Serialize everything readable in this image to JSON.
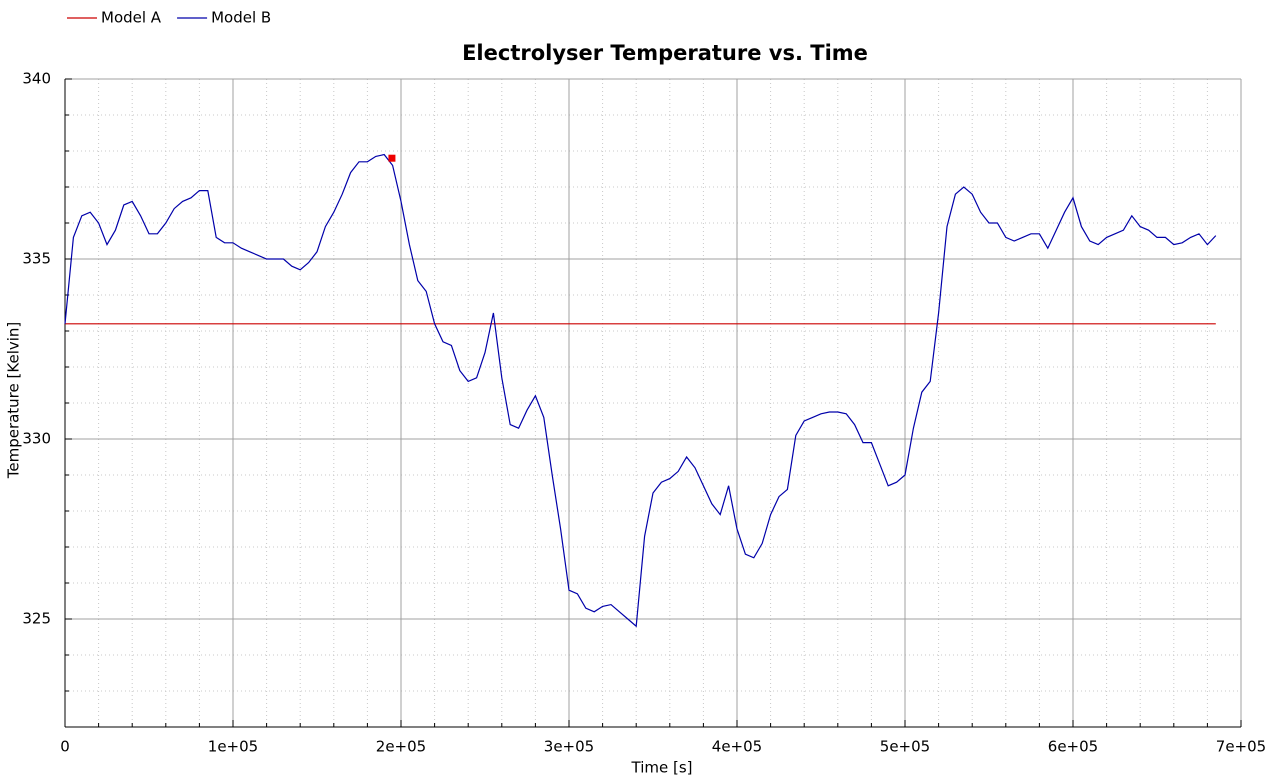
{
  "chart_data": {
    "type": "line",
    "title": "Electrolyser Temperature vs. Time",
    "xlabel": "Time [s]",
    "ylabel": "Temperature [Kelvin]",
    "xlim": [
      0,
      700000
    ],
    "ylim": [
      322,
      340
    ],
    "xticks": [
      0,
      {
        "value": 100000,
        "label": "1e+05"
      },
      {
        "value": 200000,
        "label": "2e+05"
      },
      {
        "value": 300000,
        "label": "3e+05"
      },
      {
        "value": 400000,
        "label": "4e+05"
      },
      {
        "value": 500000,
        "label": "5e+05"
      },
      {
        "value": 600000,
        "label": "6e+05"
      },
      {
        "value": 700000,
        "label": "7e+05"
      }
    ],
    "yticks": [
      325,
      330,
      335,
      340
    ],
    "xminorticks": [
      20000,
      40000,
      60000,
      80000,
      120000,
      140000,
      160000,
      180000,
      220000,
      240000,
      260000,
      280000,
      320000,
      340000,
      360000,
      380000,
      420000,
      440000,
      460000,
      480000,
      520000,
      540000,
      560000,
      580000,
      620000,
      640000,
      660000,
      680000
    ],
    "yminorticks": [
      323,
      324,
      326,
      327,
      328,
      329,
      331,
      332,
      333,
      334,
      336,
      337,
      338,
      339
    ],
    "grid": true,
    "legend": "top-left",
    "series": [
      {
        "name": "Model A",
        "color": "#cc0000",
        "x": [
          0,
          685000
        ],
        "values": [
          333.2,
          333.2
        ]
      },
      {
        "name": "Model B",
        "color": "#0000aa",
        "x": [
          0,
          5000,
          10000,
          15000,
          20000,
          25000,
          30000,
          35000,
          40000,
          45000,
          50000,
          55000,
          60000,
          65000,
          70000,
          75000,
          80000,
          85000,
          90000,
          95000,
          100000,
          105000,
          110000,
          115000,
          120000,
          125000,
          130000,
          135000,
          140000,
          145000,
          150000,
          155000,
          160000,
          165000,
          170000,
          175000,
          180000,
          185000,
          190000,
          195000,
          200000,
          205000,
          210000,
          215000,
          220000,
          225000,
          230000,
          235000,
          240000,
          245000,
          250000,
          255000,
          260000,
          265000,
          270000,
          275000,
          280000,
          285000,
          290000,
          295000,
          300000,
          305000,
          310000,
          315000,
          320000,
          325000,
          330000,
          335000,
          340000,
          345000,
          350000,
          355000,
          360000,
          365000,
          370000,
          375000,
          380000,
          385000,
          390000,
          395000,
          400000,
          405000,
          410000,
          415000,
          420000,
          425000,
          430000,
          435000,
          440000,
          445000,
          450000,
          455000,
          460000,
          465000,
          470000,
          475000,
          480000,
          485000,
          490000,
          495000,
          500000,
          505000,
          510000,
          515000,
          520000,
          525000,
          530000,
          535000,
          540000,
          545000,
          550000,
          555000,
          560000,
          565000,
          570000,
          575000,
          580000,
          585000,
          590000,
          595000,
          600000,
          605000,
          610000,
          615000,
          620000,
          625000,
          630000,
          635000,
          640000,
          645000,
          650000,
          655000,
          660000,
          665000,
          670000,
          675000,
          680000,
          685000
        ],
        "values": [
          333.2,
          335.6,
          336.2,
          336.3,
          336.0,
          335.4,
          335.8,
          336.5,
          336.6,
          336.2,
          335.7,
          335.7,
          336.0,
          336.4,
          336.6,
          336.7,
          336.9,
          336.9,
          335.6,
          335.45,
          335.45,
          335.3,
          335.2,
          335.1,
          335.0,
          335.0,
          335.0,
          334.8,
          334.7,
          334.9,
          335.2,
          335.9,
          336.3,
          336.8,
          337.4,
          337.7,
          337.7,
          337.85,
          337.9,
          337.6,
          336.6,
          335.4,
          334.4,
          334.1,
          333.2,
          332.7,
          332.6,
          331.9,
          331.6,
          331.7,
          332.4,
          333.5,
          331.7,
          330.4,
          330.3,
          330.8,
          331.2,
          330.6,
          329.0,
          327.5,
          325.8,
          325.7,
          325.3,
          325.2,
          325.35,
          325.4,
          325.2,
          325.0,
          324.8,
          327.3,
          328.5,
          328.8,
          328.9,
          329.1,
          329.5,
          329.2,
          328.7,
          328.2,
          327.9,
          328.7,
          327.5,
          326.8,
          326.7,
          327.1,
          327.9,
          328.4,
          328.6,
          330.1,
          330.5,
          330.6,
          330.7,
          330.75,
          330.75,
          330.7,
          330.4,
          329.9,
          329.9,
          329.3,
          328.7,
          328.8,
          329.0,
          330.3,
          331.3,
          331.6,
          333.5,
          335.9,
          336.8,
          337.0,
          336.8,
          336.3,
          336.0,
          336.0,
          335.6,
          335.5,
          335.6,
          335.7,
          335.7,
          335.3,
          335.8,
          336.3,
          336.7,
          335.9,
          335.5,
          335.4,
          335.6,
          335.7,
          335.8,
          336.2,
          335.9,
          335.8,
          335.6,
          335.6,
          335.4,
          335.45,
          335.6,
          335.7,
          335.4,
          335.65
        ]
      }
    ],
    "marker": {
      "x": 194600,
      "y": 337.8,
      "color": "#ee0000"
    }
  }
}
